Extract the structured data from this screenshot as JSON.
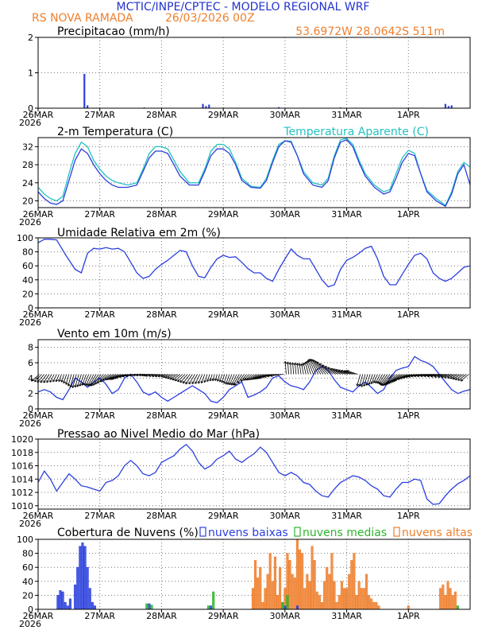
{
  "header": {
    "title": "MCTIC/INPE/CPTEC - MODELO REGIONAL WRF",
    "location": "RS NOVA RAMADA",
    "run": "26/03/2026 00Z",
    "coords": "53.6972W 28.0642S 511m",
    "title_color": "#2233cc",
    "accent_color": "#ee7f2d"
  },
  "x_axis": {
    "days": 7,
    "labels": [
      "26MAR",
      "27MAR",
      "28MAR",
      "29MAR",
      "30MAR",
      "31MAR",
      "1APR"
    ],
    "year": "2026"
  },
  "colors": {
    "blue": "#2b3fdd",
    "cyan": "#22c1c3",
    "green": "#2cb42c",
    "orange": "#ee7f2d",
    "black": "#000000"
  },
  "chart_data": [
    {
      "id": "precip",
      "type": "bar",
      "title": "Precipitacao (mm/h)",
      "ylim": [
        0,
        2
      ],
      "yticks": [
        0,
        1,
        2
      ],
      "series": [
        {
          "name": "precip",
          "x": [
            0.75,
            0.8,
            1.72,
            2.67,
            2.72,
            2.77,
            3.9,
            4.9,
            6.6,
            6.65,
            6.7
          ],
          "values": [
            0.97,
            0.08,
            0.02,
            0.12,
            0.06,
            0.1,
            0.03,
            0.02,
            0.12,
            0.06,
            0.08
          ]
        }
      ]
    },
    {
      "id": "temp",
      "type": "line",
      "title": "2-m Temperatura (C)",
      "legend": [
        "Temperatura Aparente (C)"
      ],
      "ylim": [
        18.5,
        34
      ],
      "yticks": [
        20,
        24,
        28,
        32
      ],
      "series": [
        {
          "name": "Temperatura Aparente (C)",
          "color": "cyan",
          "x": [
            0,
            0.1,
            0.2,
            0.3,
            0.4,
            0.5,
            0.6,
            0.7,
            0.8,
            0.9,
            1.0,
            1.1,
            1.2,
            1.3,
            1.45,
            1.6,
            1.7,
            1.8,
            1.9,
            2.0,
            2.1,
            2.2,
            2.3,
            2.45,
            2.6,
            2.7,
            2.8,
            2.9,
            3.0,
            3.1,
            3.2,
            3.3,
            3.45,
            3.6,
            3.7,
            3.8,
            3.9,
            4.0,
            4.1,
            4.2,
            4.3,
            4.45,
            4.6,
            4.7,
            4.8,
            4.9,
            5.0,
            5.1,
            5.2,
            5.3,
            5.45,
            5.6,
            5.7,
            5.8,
            5.9,
            6.0,
            6.1,
            6.2,
            6.3,
            6.45,
            6.6,
            6.7,
            6.8,
            6.9,
            7.0
          ],
          "values": [
            23,
            21.5,
            20.5,
            20,
            21,
            26,
            30.5,
            33,
            32,
            29,
            27,
            25.5,
            24.5,
            24,
            23.5,
            24,
            27,
            30.5,
            32,
            32,
            31.5,
            29,
            26.5,
            24,
            24,
            27,
            31,
            32.5,
            32.5,
            31.5,
            28.5,
            25,
            23.2,
            23,
            25,
            29,
            32.5,
            33.3,
            33.2,
            30,
            26.5,
            24,
            23.5,
            25,
            30,
            33.5,
            33.8,
            32.5,
            29,
            26,
            23.5,
            22,
            22.5,
            26,
            29.5,
            31.2,
            30.5,
            26,
            22.3,
            20.5,
            19,
            22,
            26.5,
            28.5,
            27.5
          ]
        },
        {
          "name": "2-m Temperatura (C)",
          "color": "blue",
          "x": [
            0,
            0.1,
            0.2,
            0.3,
            0.4,
            0.5,
            0.6,
            0.7,
            0.8,
            0.9,
            1.0,
            1.1,
            1.2,
            1.3,
            1.45,
            1.6,
            1.7,
            1.8,
            1.9,
            2.0,
            2.1,
            2.2,
            2.3,
            2.45,
            2.6,
            2.7,
            2.8,
            2.9,
            3.0,
            3.1,
            3.2,
            3.3,
            3.45,
            3.6,
            3.7,
            3.8,
            3.9,
            4.0,
            4.1,
            4.2,
            4.3,
            4.45,
            4.6,
            4.7,
            4.8,
            4.9,
            5.0,
            5.1,
            5.2,
            5.3,
            5.45,
            5.6,
            5.7,
            5.8,
            5.9,
            6.0,
            6.1,
            6.2,
            6.3,
            6.45,
            6.6,
            6.7,
            6.8,
            6.9,
            7.0
          ],
          "values": [
            22,
            20.5,
            19.5,
            19.2,
            20,
            24.5,
            29,
            31.5,
            30.5,
            28,
            26,
            24.5,
            23.5,
            23,
            23,
            23.5,
            26.5,
            29.5,
            31,
            31,
            30.5,
            28,
            25.5,
            23.5,
            23.5,
            26.5,
            30,
            31.5,
            31.5,
            30.5,
            28,
            24.5,
            23,
            22.8,
            24.5,
            28.5,
            32,
            33.3,
            33,
            30,
            26,
            23.5,
            23,
            24.5,
            29.5,
            33,
            33.5,
            32,
            28.5,
            25.5,
            23,
            21.5,
            22,
            25,
            28.5,
            30.5,
            30,
            26,
            22,
            20,
            18.8,
            21.5,
            26,
            28,
            23.5
          ]
        }
      ]
    },
    {
      "id": "rh",
      "type": "line",
      "title": "Umidade Relativa em 2m (%)",
      "ylim": [
        0,
        100
      ],
      "yticks": [
        0,
        20,
        40,
        60,
        80,
        100
      ],
      "series": [
        {
          "name": "Umidade Relativa",
          "color": "blue",
          "x": [
            0,
            0.1,
            0.2,
            0.3,
            0.45,
            0.6,
            0.7,
            0.8,
            0.9,
            1.0,
            1.1,
            1.2,
            1.3,
            1.4,
            1.5,
            1.6,
            1.7,
            1.8,
            1.9,
            2.0,
            2.1,
            2.2,
            2.3,
            2.4,
            2.5,
            2.6,
            2.7,
            2.8,
            2.9,
            3.0,
            3.1,
            3.2,
            3.3,
            3.4,
            3.5,
            3.6,
            3.7,
            3.8,
            3.9,
            4.0,
            4.1,
            4.2,
            4.3,
            4.4,
            4.5,
            4.6,
            4.7,
            4.8,
            4.9,
            5.0,
            5.1,
            5.2,
            5.3,
            5.4,
            5.5,
            5.6,
            5.7,
            5.8,
            5.9,
            6.0,
            6.1,
            6.2,
            6.3,
            6.4,
            6.5,
            6.6,
            6.7,
            6.8,
            6.9,
            7.0
          ],
          "values": [
            93,
            98,
            98,
            97,
            75,
            55,
            50,
            78,
            85,
            84,
            86,
            84,
            85,
            80,
            65,
            50,
            42,
            45,
            55,
            62,
            68,
            75,
            82,
            80,
            60,
            45,
            43,
            58,
            70,
            75,
            72,
            73,
            65,
            56,
            50,
            50,
            42,
            38,
            55,
            70,
            84,
            75,
            70,
            70,
            55,
            40,
            30,
            33,
            55,
            68,
            72,
            78,
            85,
            88,
            70,
            45,
            33,
            33,
            48,
            62,
            75,
            78,
            70,
            50,
            42,
            38,
            42,
            50,
            58,
            60
          ]
        }
      ]
    },
    {
      "id": "wind",
      "type": "line",
      "title": "Vento em 10m (m/s)",
      "ylim": [
        0,
        9
      ],
      "yticks": [
        0,
        2,
        4,
        6,
        8
      ],
      "series": [
        {
          "name": "Vento",
          "color": "blue",
          "x": [
            0,
            0.1,
            0.2,
            0.3,
            0.4,
            0.5,
            0.6,
            0.7,
            0.8,
            0.9,
            1.0,
            1.1,
            1.2,
            1.3,
            1.4,
            1.5,
            1.6,
            1.7,
            1.8,
            1.9,
            2.0,
            2.1,
            2.2,
            2.3,
            2.4,
            2.5,
            2.6,
            2.7,
            2.8,
            2.9,
            3.0,
            3.1,
            3.2,
            3.3,
            3.4,
            3.5,
            3.6,
            3.7,
            3.8,
            3.9,
            4.0,
            4.1,
            4.2,
            4.3,
            4.4,
            4.5,
            4.6,
            4.7,
            4.8,
            4.9,
            5.0,
            5.1,
            5.2,
            5.3,
            5.4,
            5.5,
            5.6,
            5.7,
            5.8,
            5.9,
            6.0,
            6.1,
            6.2,
            6.3,
            6.4,
            6.5,
            6.6,
            6.7,
            6.8,
            6.9,
            7.0
          ],
          "values": [
            2.2,
            2.5,
            2.2,
            1.5,
            1.2,
            2.5,
            4.0,
            3.5,
            2.8,
            3.5,
            4.0,
            3.2,
            2.0,
            2.5,
            4.0,
            4.5,
            3.5,
            2.2,
            1.8,
            2.2,
            1.5,
            1.0,
            1.5,
            2.0,
            2.5,
            3.0,
            2.5,
            2.0,
            1.0,
            0.8,
            1.5,
            2.5,
            3.0,
            3.5,
            1.5,
            1.8,
            2.2,
            2.8,
            4.0,
            4.3,
            3.5,
            3.0,
            2.8,
            2.5,
            3.5,
            5.0,
            5.5,
            5.0,
            3.8,
            2.8,
            2.5,
            2.2,
            3.0,
            3.5,
            2.8,
            2.0,
            2.5,
            4.0,
            5.0,
            5.3,
            5.5,
            6.8,
            6.3,
            6.0,
            5.5,
            4.5,
            3.5,
            2.5,
            2.0,
            2.3,
            2.5
          ]
        }
      ]
    },
    {
      "id": "mslp",
      "type": "line",
      "title": "Pressao ao Nivel Medio do Mar (hPa)",
      "ylim": [
        1009.5,
        1020
      ],
      "yticks": [
        1010,
        1012,
        1014,
        1016,
        1018,
        1020
      ],
      "series": [
        {
          "name": "Pressao",
          "color": "blue",
          "x": [
            0,
            0.1,
            0.2,
            0.3,
            0.4,
            0.5,
            0.6,
            0.7,
            0.8,
            0.9,
            1.0,
            1.1,
            1.2,
            1.3,
            1.4,
            1.5,
            1.6,
            1.7,
            1.8,
            1.9,
            2.0,
            2.1,
            2.2,
            2.3,
            2.4,
            2.5,
            2.6,
            2.7,
            2.8,
            2.9,
            3.0,
            3.1,
            3.2,
            3.3,
            3.4,
            3.5,
            3.6,
            3.7,
            3.8,
            3.9,
            4.0,
            4.1,
            4.2,
            4.3,
            4.4,
            4.5,
            4.6,
            4.7,
            4.8,
            4.9,
            5.0,
            5.1,
            5.2,
            5.3,
            5.4,
            5.5,
            5.6,
            5.7,
            5.8,
            5.9,
            6.0,
            6.1,
            6.2,
            6.3,
            6.4,
            6.5,
            6.6,
            6.7,
            6.8,
            6.9,
            7.0
          ],
          "values": [
            1013.5,
            1015.2,
            1014,
            1012.2,
            1013.5,
            1014.8,
            1014,
            1013,
            1012.8,
            1012.5,
            1012.2,
            1013.5,
            1013.8,
            1014.5,
            1016,
            1016.8,
            1016,
            1014.8,
            1014.5,
            1015,
            1016.5,
            1017,
            1017.5,
            1018.5,
            1019.2,
            1018.2,
            1016.5,
            1015.5,
            1016,
            1017,
            1017.5,
            1018.2,
            1017,
            1016.5,
            1017.2,
            1017.8,
            1018.8,
            1018,
            1016.5,
            1015,
            1014.5,
            1015,
            1014.5,
            1013.5,
            1013.2,
            1012.2,
            1011.5,
            1011.3,
            1012.5,
            1013.5,
            1014,
            1014.5,
            1014.3,
            1013.8,
            1013,
            1012.5,
            1011.5,
            1011.3,
            1012.5,
            1013.5,
            1013.5,
            1014,
            1013.8,
            1011,
            1010.2,
            1010.3,
            1011.5,
            1012.5,
            1013.3,
            1013.8,
            1014.5
          ]
        }
      ]
    },
    {
      "id": "clouds",
      "type": "bar",
      "title": "Cobertura de Nuvens (%)",
      "legend": [
        "nuvens baixas",
        "nuvens medias",
        "nuvens altas"
      ],
      "ylim": [
        0,
        100
      ],
      "yticks": [
        0,
        20,
        40,
        60,
        80,
        100
      ],
      "series": [
        {
          "name": "nuvens altas",
          "color": "orange",
          "x": [
            3.48,
            3.52,
            3.56,
            3.6,
            3.64,
            3.68,
            3.72,
            3.76,
            3.8,
            3.84,
            3.88,
            3.92,
            3.96,
            4.0,
            4.04,
            4.08,
            4.12,
            4.16,
            4.2,
            4.24,
            4.28,
            4.32,
            4.36,
            4.4,
            4.44,
            4.48,
            4.52,
            4.56,
            4.6,
            4.64,
            4.68,
            4.72,
            4.76,
            4.8,
            4.84,
            4.88,
            4.92,
            4.96,
            5.0,
            5.04,
            5.08,
            5.12,
            5.16,
            5.2,
            5.24,
            5.28,
            5.32,
            5.36,
            5.4,
            5.44,
            5.48,
            5.52,
            6.0,
            6.52,
            6.56,
            6.6,
            6.64,
            6.68,
            6.72,
            6.76
          ],
          "values": [
            30,
            70,
            45,
            60,
            10,
            30,
            50,
            80,
            40,
            75,
            20,
            60,
            10,
            30,
            80,
            70,
            50,
            45,
            100,
            85,
            80,
            30,
            50,
            40,
            90,
            70,
            25,
            20,
            10,
            40,
            60,
            50,
            80,
            40,
            10,
            20,
            40,
            30,
            30,
            50,
            70,
            80,
            20,
            40,
            30,
            30,
            50,
            20,
            15,
            10,
            10,
            5,
            5,
            30,
            35,
            20,
            40,
            30,
            20,
            25
          ]
        },
        {
          "name": "nuvens baixas",
          "color": "blue",
          "x": [
            0.32,
            0.36,
            0.4,
            0.44,
            0.48,
            0.52,
            0.6,
            0.64,
            0.68,
            0.72,
            0.76,
            0.8,
            0.84,
            0.88,
            0.92,
            1.8,
            2.8,
            4.0,
            4.2
          ],
          "values": [
            20,
            27,
            25,
            10,
            5,
            15,
            35,
            60,
            90,
            95,
            90,
            60,
            30,
            10,
            5,
            8,
            5,
            5,
            5
          ]
        },
        {
          "name": "nuvens medias",
          "color": "green",
          "x": [
            1.76,
            1.84,
            2.76,
            2.84,
            3.96,
            4.04,
            6.8
          ],
          "values": [
            8,
            6,
            5,
            25,
            10,
            20,
            5
          ]
        }
      ]
    }
  ]
}
